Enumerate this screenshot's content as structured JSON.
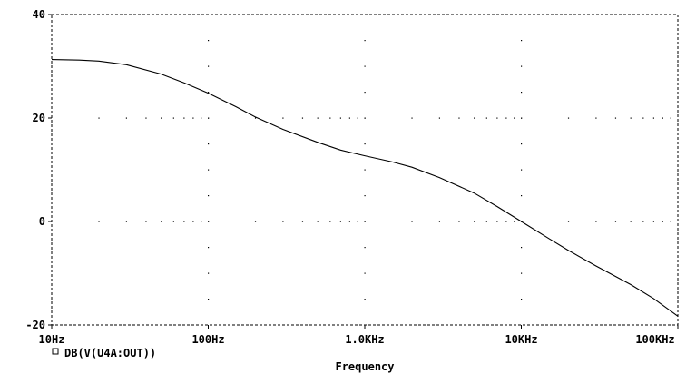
{
  "chart_data": {
    "type": "line",
    "xscale": "log",
    "xlim": [
      10,
      100000
    ],
    "ylim": [
      -20,
      40
    ],
    "x_ticks": [
      10,
      100,
      1000,
      10000,
      100000
    ],
    "x_tick_labels": [
      "10Hz",
      "100Hz",
      "1.0KHz",
      "10KHz",
      "100KHz"
    ],
    "y_ticks": [
      40,
      20,
      0,
      -20
    ],
    "y_tick_labels": [
      "40",
      "20",
      "0",
      "-20"
    ],
    "xlabel": "Frequency",
    "ylabel": "",
    "grid": "dotted",
    "legend_position": "bottom-left",
    "series": [
      {
        "name": "DB(V(U4A:OUT))",
        "color": "#000000",
        "x": [
          10,
          15,
          20,
          30,
          50,
          70,
          100,
          150,
          200,
          300,
          500,
          700,
          1000,
          1500,
          2000,
          3000,
          5000,
          7000,
          10000,
          15000,
          20000,
          30000,
          50000,
          70000,
          100000
        ],
        "y": [
          31.3,
          31.2,
          31.0,
          30.3,
          28.5,
          26.8,
          24.8,
          22.2,
          20.2,
          17.8,
          15.3,
          13.8,
          12.7,
          11.5,
          10.5,
          8.5,
          5.5,
          2.9,
          0,
          -3.3,
          -5.6,
          -8.6,
          -12.2,
          -14.9,
          -18.3
        ]
      }
    ]
  }
}
